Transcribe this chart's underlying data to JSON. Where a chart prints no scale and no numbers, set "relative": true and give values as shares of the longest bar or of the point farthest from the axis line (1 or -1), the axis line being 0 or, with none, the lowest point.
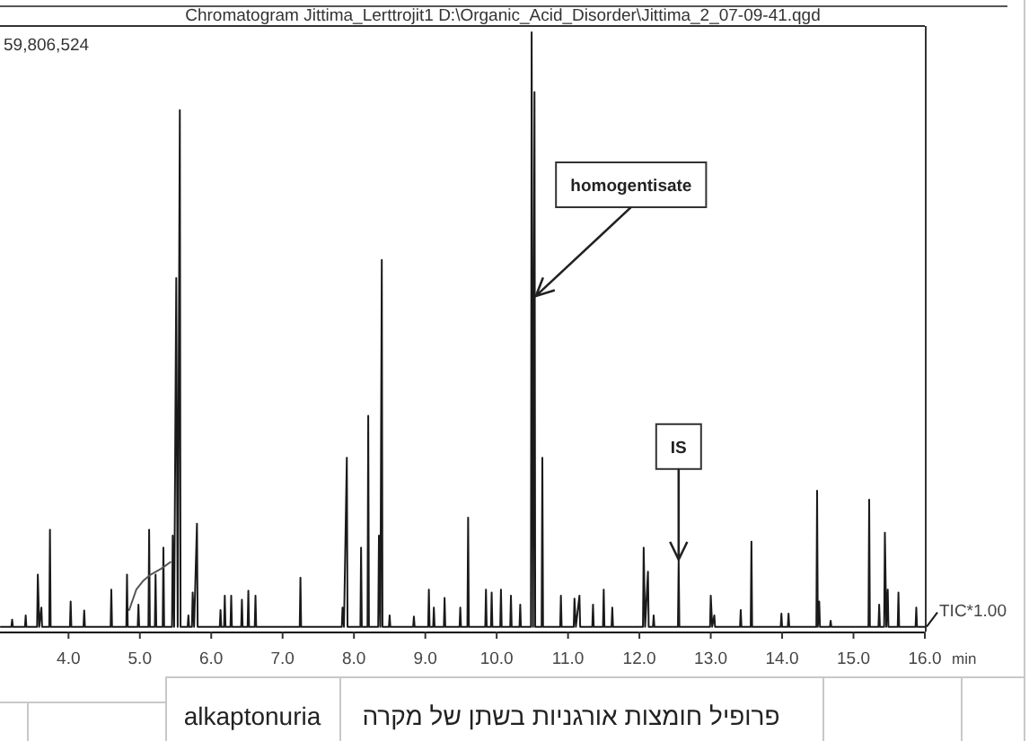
{
  "chart_data": {
    "type": "line",
    "title": "Chromatogram Jittima_Lerttrojit1 D:\\Organic_Acid_Disorder\\Jittima_2_07-09-41.qgd",
    "xlabel": "min",
    "relative": true,
    "xlim": [
      3.04,
      16.0
    ],
    "xticks": [
      {
        "value": 4,
        "label": "4.0"
      },
      {
        "value": 5,
        "label": "5.0"
      },
      {
        "value": 6,
        "label": "6.0"
      },
      {
        "value": 7,
        "label": "7.0"
      },
      {
        "value": 8,
        "label": "8.0"
      },
      {
        "value": 9,
        "label": "9.0"
      },
      {
        "value": 10,
        "label": "10.0"
      },
      {
        "value": 11,
        "label": "11.0"
      },
      {
        "value": 12,
        "label": "12.0"
      },
      {
        "value": 13,
        "label": "13.0"
      },
      {
        "value": 14,
        "label": "14.0"
      },
      {
        "value": 15,
        "label": "15.0"
      },
      {
        "value": 16,
        "label": "16.0"
      }
    ],
    "series": [
      {
        "name": "TIC*1.00",
        "color": "#1a1a1a",
        "x": [
          3.05,
          3.2,
          3.21,
          3.22,
          3.39,
          3.4,
          3.41,
          3.56,
          3.57,
          3.59,
          3.62,
          3.63,
          3.73,
          3.74,
          3.75,
          4.02,
          4.03,
          4.04,
          4.21,
          4.22,
          4.23,
          4.59,
          4.6,
          4.61,
          4.81,
          4.82,
          4.83,
          4.97,
          4.98,
          4.99,
          5.12,
          5.13,
          5.14,
          5.21,
          5.22,
          5.23,
          5.32,
          5.33,
          5.34,
          5.45,
          5.46,
          5.48,
          5.51,
          5.53,
          5.56,
          5.57,
          5.67,
          5.68,
          5.69,
          5.73,
          5.74,
          5.76,
          5.8,
          5.81,
          6.12,
          6.13,
          6.14,
          6.18,
          6.19,
          6.2,
          6.27,
          6.28,
          6.29,
          6.42,
          6.43,
          6.44,
          6.51,
          6.52,
          6.53,
          6.61,
          6.62,
          6.63,
          7.24,
          7.25,
          7.26,
          7.83,
          7.84,
          7.86,
          7.9,
          7.91,
          8.09,
          8.1,
          8.11,
          8.19,
          8.2,
          8.21,
          8.34,
          8.35,
          8.37,
          8.39,
          8.4,
          8.49,
          8.5,
          8.51,
          8.83,
          8.84,
          8.85,
          9.04,
          9.05,
          9.06,
          9.11,
          9.12,
          9.13,
          9.26,
          9.27,
          9.28,
          9.48,
          9.49,
          9.5,
          9.59,
          9.6,
          9.61,
          9.84,
          9.85,
          9.86,
          9.92,
          9.93,
          9.94,
          10.05,
          10.06,
          10.07,
          10.19,
          10.2,
          10.21,
          10.32,
          10.33,
          10.34,
          10.48,
          10.49,
          10.51,
          10.53,
          10.54,
          10.63,
          10.64,
          10.65,
          10.89,
          10.9,
          10.91,
          11.08,
          11.09,
          11.11,
          11.16,
          11.17,
          11.34,
          11.35,
          11.36,
          11.49,
          11.5,
          11.51,
          11.61,
          11.62,
          11.63,
          12.05,
          12.06,
          12.08,
          12.12,
          12.13,
          12.19,
          12.2,
          12.21,
          12.54,
          12.55,
          12.56,
          12.99,
          13.0,
          13.02,
          13.05,
          13.06,
          13.41,
          13.42,
          13.43,
          13.56,
          13.57,
          13.58,
          13.98,
          13.99,
          14.0,
          14.08,
          14.09,
          14.1,
          14.48,
          14.49,
          14.5,
          14.52,
          14.53,
          14.67,
          14.68,
          14.69,
          15.21,
          15.22,
          15.23,
          15.35,
          15.36,
          15.37,
          15.43,
          15.44,
          15.46,
          15.48,
          15.49,
          15.62,
          15.63,
          15.64,
          15.87,
          15.88,
          15.89,
          16.0
        ],
        "values": [
          0.008,
          0.008,
          0.02,
          0.008,
          0.008,
          0.027,
          0.008,
          0.008,
          0.095,
          0.008,
          0.04,
          0.008,
          0.008,
          0.17,
          0.008,
          0.008,
          0.05,
          0.008,
          0.008,
          0.035,
          0.008,
          0.008,
          0.07,
          0.008,
          0.008,
          0.095,
          0.008,
          0.008,
          0.045,
          0.008,
          0.008,
          0.17,
          0.008,
          0.008,
          0.095,
          0.008,
          0.008,
          0.14,
          0.008,
          0.008,
          0.16,
          0.008,
          0.59,
          0.008,
          0.87,
          0.008,
          0.008,
          0.027,
          0.008,
          0.008,
          0.065,
          0.008,
          0.18,
          0.008,
          0.008,
          0.036,
          0.008,
          0.008,
          0.06,
          0.008,
          0.008,
          0.06,
          0.008,
          0.008,
          0.053,
          0.008,
          0.008,
          0.068,
          0.008,
          0.008,
          0.06,
          0.008,
          0.008,
          0.09,
          0.008,
          0.008,
          0.04,
          0.008,
          0.29,
          0.008,
          0.008,
          0.14,
          0.008,
          0.008,
          0.36,
          0.008,
          0.008,
          0.16,
          0.008,
          0.62,
          0.008,
          0.008,
          0.027,
          0.008,
          0.008,
          0.025,
          0.008,
          0.008,
          0.07,
          0.008,
          0.008,
          0.04,
          0.008,
          0.008,
          0.056,
          0.008,
          0.008,
          0.04,
          0.008,
          0.008,
          0.19,
          0.008,
          0.008,
          0.07,
          0.008,
          0.008,
          0.065,
          0.008,
          0.008,
          0.07,
          0.008,
          0.008,
          0.06,
          0.008,
          0.008,
          0.045,
          0.008,
          0.008,
          1.0,
          0.008,
          0.9,
          0.008,
          0.008,
          0.29,
          0.008,
          0.008,
          0.06,
          0.008,
          0.008,
          0.055,
          0.008,
          0.06,
          0.008,
          0.008,
          0.045,
          0.008,
          0.008,
          0.07,
          0.008,
          0.008,
          0.04,
          0.008,
          0.008,
          0.14,
          0.008,
          0.1,
          0.008,
          0.008,
          0.027,
          0.008,
          0.008,
          0.12,
          0.008,
          0.008,
          0.06,
          0.008,
          0.027,
          0.008,
          0.008,
          0.036,
          0.008,
          0.008,
          0.15,
          0.008,
          0.008,
          0.03,
          0.008,
          0.008,
          0.03,
          0.008,
          0.008,
          0.235,
          0.008,
          0.05,
          0.008,
          0.008,
          0.018,
          0.008,
          0.008,
          0.22,
          0.008,
          0.008,
          0.045,
          0.008,
          0.008,
          0.165,
          0.008,
          0.07,
          0.008,
          0.008,
          0.065,
          0.008,
          0.008,
          0.04,
          0.008,
          0.008
        ]
      },
      {
        "color": "#555555",
        "x": [
          4.85,
          4.95,
          5.05,
          5.15,
          5.3,
          5.43
        ],
        "values": [
          0.036,
          0.07,
          0.085,
          0.095,
          0.105,
          0.116
        ]
      }
    ],
    "annotations": [
      "59,806,524",
      {
        "text": "homogentisate",
        "x": 10.55,
        "y": 0.56
      },
      {
        "text": "IS",
        "x": 12.55,
        "y": 0.12
      },
      "alkaptonuria",
      "פרופיל חומצות אורגניות בשתן של מקרה"
    ]
  }
}
